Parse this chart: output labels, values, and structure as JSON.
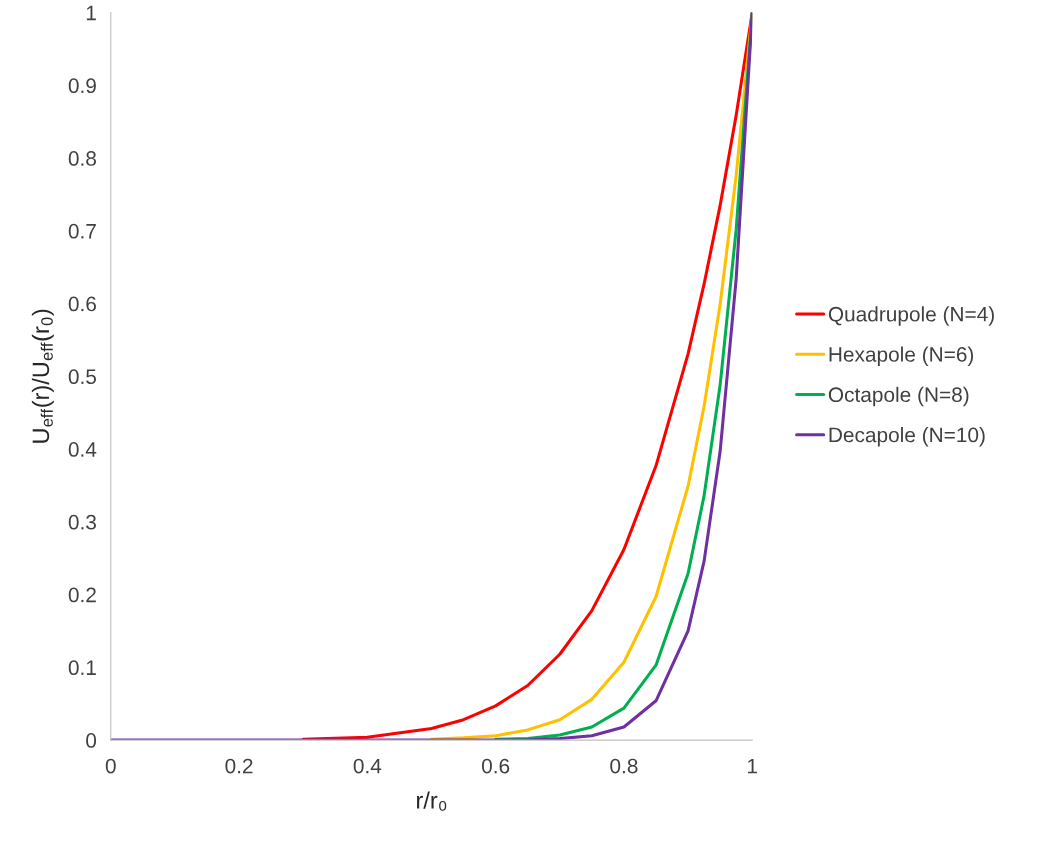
{
  "chart_data": {
    "type": "line",
    "xlabel": "r/r₀",
    "ylabel": "U$_{eff}$(r)/U$_{eff}$(r$_{0}$)",
    "x": [
      0,
      0.1,
      0.2,
      0.3,
      0.4,
      0.5,
      0.55,
      0.6,
      0.65,
      0.7,
      0.75,
      0.8,
      0.85,
      0.9,
      0.925,
      0.95,
      0.975,
      1
    ],
    "series": [
      {
        "name": "Quadrupole (N=4)",
        "color": "#ff0000",
        "values": [
          null,
          null,
          null,
          0.001,
          0.004,
          0.016,
          0.028,
          0.047,
          0.075,
          0.118,
          0.178,
          0.262,
          0.377,
          0.531,
          0.627,
          0.735,
          0.859,
          1
        ]
      },
      {
        "name": "Hexapole (N=6)",
        "color": "#ffc000",
        "values": [
          null,
          null,
          null,
          null,
          null,
          0.001,
          0.003,
          0.006,
          0.014,
          0.028,
          0.056,
          0.107,
          0.197,
          0.349,
          0.459,
          0.599,
          0.776,
          1
        ]
      },
      {
        "name": "Octapole (N=8)",
        "color": "#00b050",
        "values": [
          null,
          null,
          null,
          null,
          null,
          null,
          null,
          0.001,
          0.002,
          0.007,
          0.018,
          0.044,
          0.103,
          0.229,
          0.336,
          0.488,
          0.702,
          1
        ]
      },
      {
        "name": "Decapole (N=10)",
        "color": "#7030a0",
        "values": [
          0,
          0,
          0,
          0,
          0,
          0,
          0,
          0,
          0,
          0.002,
          0.006,
          0.018,
          0.054,
          0.15,
          0.246,
          0.397,
          0.634,
          1
        ]
      }
    ],
    "xlim": [
      0,
      1
    ],
    "ylim": [
      0,
      1
    ],
    "xticks": [
      0,
      0.2,
      0.4,
      0.6,
      0.8,
      1
    ],
    "yticks": [
      0,
      0.1,
      0.2,
      0.3,
      0.4,
      0.5,
      0.6,
      0.7,
      0.8,
      0.9,
      1
    ],
    "grid": false,
    "legend": "right",
    "marker": "none",
    "line_style": "solid"
  }
}
